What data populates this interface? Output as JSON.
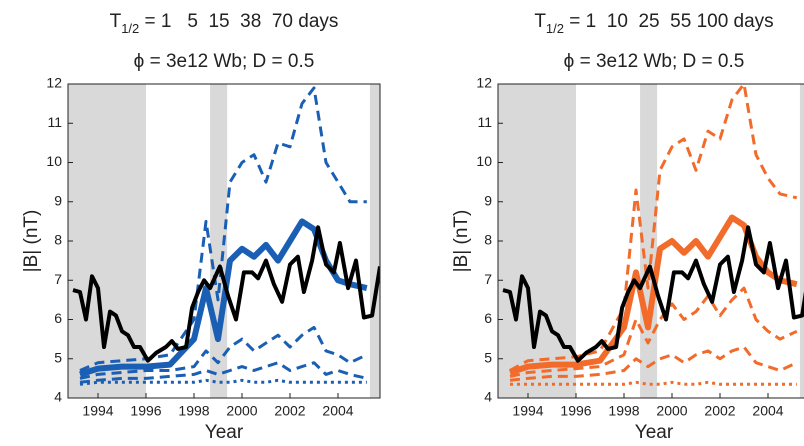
{
  "chart_data": [
    {
      "type": "line",
      "title": "T",
      "title_subscript": "1/2",
      "title_rest": " = 1   5  15  38  70 days",
      "subtitle": "ϕ = 3e12 Wb; D = 0.5",
      "x_label": "Year",
      "y_label": "|B| (nT)",
      "xlim": [
        1992.75,
        2005.75
      ],
      "ylim": [
        4,
        12
      ],
      "xticks": [
        1994,
        1996,
        1998,
        2000,
        2002,
        2004
      ],
      "yticks": [
        4,
        5,
        6,
        7,
        8,
        9,
        10,
        11,
        12
      ],
      "shade_color": "#d9d9d9",
      "shaded_regions": [
        [
          1992.75,
          1996
        ],
        [
          1998.67,
          1999.38
        ],
        [
          2005.33,
          2005.75
        ]
      ],
      "series": [
        {
          "color": "#1a5fb4",
          "dash": "dotted",
          "linewidth": 3,
          "x": [
            1993.25,
            1994,
            1995,
            1996,
            1997,
            1998,
            1998.5,
            1999,
            1999.5,
            2000,
            2000.5,
            2001,
            2001.5,
            2002,
            2002.5,
            2003,
            2003.5,
            2004,
            2004.5,
            2005.2
          ],
          "values": [
            4.35,
            4.4,
            4.4,
            4.4,
            4.4,
            4.4,
            4.45,
            4.4,
            4.4,
            4.45,
            4.4,
            4.4,
            4.45,
            4.4,
            4.4,
            4.4,
            4.4,
            4.4,
            4.4,
            4.4
          ]
        },
        {
          "color": "#1a5fb4",
          "dash": "dashed",
          "linewidth": 3,
          "x": [
            1993.25,
            1994,
            1995,
            1996,
            1997,
            1998,
            1998.5,
            1999,
            1999.5,
            2000,
            2000.5,
            2001,
            2001.5,
            2002,
            2002.5,
            2003,
            2003.5,
            2004,
            2004.5,
            2005.2
          ],
          "values": [
            4.4,
            4.45,
            4.5,
            4.5,
            4.55,
            4.6,
            4.7,
            4.6,
            4.7,
            4.8,
            4.7,
            4.8,
            4.9,
            4.7,
            4.8,
            4.9,
            4.6,
            4.7,
            4.6,
            4.5
          ]
        },
        {
          "color": "#1a5fb4",
          "dash": "dashed",
          "linewidth": 3,
          "x": [
            1993.25,
            1994,
            1995,
            1996,
            1997,
            1998,
            1998.5,
            1999,
            1999.5,
            2000,
            2000.5,
            2001,
            2001.5,
            2002,
            2002.5,
            2003,
            2003.5,
            2004,
            2004.5,
            2005.2
          ],
          "values": [
            4.5,
            4.6,
            4.65,
            4.7,
            4.7,
            4.8,
            5.2,
            4.9,
            5.3,
            5.5,
            5.2,
            5.4,
            5.6,
            5.3,
            5.6,
            5.8,
            5.2,
            5.1,
            4.9,
            5.1
          ]
        },
        {
          "color": "#1a5fb4",
          "dash": "solid",
          "linewidth": 6,
          "x": [
            1993.25,
            1994,
            1995,
            1996,
            1997,
            1998,
            1998.5,
            1999,
            1999.5,
            2000,
            2000.5,
            2001,
            2001.5,
            2002,
            2002.5,
            2003,
            2003.5,
            2004,
            2004.5,
            2005.2
          ],
          "values": [
            4.6,
            4.75,
            4.8,
            4.8,
            4.85,
            5.5,
            6.8,
            5.5,
            7.5,
            7.8,
            7.6,
            7.9,
            7.5,
            8.0,
            8.5,
            8.3,
            7.5,
            7.0,
            6.9,
            6.8
          ]
        },
        {
          "color": "#1a5fb4",
          "dash": "dashed",
          "linewidth": 3,
          "x": [
            1993.25,
            1994,
            1995,
            1996,
            1997,
            1998,
            1998.5,
            1999,
            1999.5,
            2000,
            2000.5,
            2001,
            2001.5,
            2002,
            2002.5,
            2003,
            2003.5,
            2004,
            2004.5,
            2005.2
          ],
          "values": [
            4.7,
            4.9,
            4.95,
            5.0,
            5.1,
            6.0,
            8.5,
            6.5,
            9.5,
            10.0,
            10.2,
            9.5,
            10.5,
            10.4,
            11.5,
            11.9,
            10.0,
            9.5,
            9.0,
            9.0
          ]
        },
        {
          "color": "#000000",
          "dash": "solid",
          "linewidth": 4,
          "x": [
            1992.96,
            1993.25,
            1993.5,
            1993.75,
            1994,
            1994.25,
            1994.5,
            1994.75,
            1995,
            1995.25,
            1995.5,
            1995.75,
            1996.08,
            1996.42,
            1996.83,
            1997.08,
            1997.33,
            1997.67,
            1997.92,
            1998.17,
            1998.42,
            1998.67,
            1999.08,
            1999.42,
            1999.75,
            2000.08,
            2000.42,
            2000.67,
            2001,
            2001.33,
            2001.67,
            2002,
            2002.33,
            2002.58,
            2002.92,
            2003.17,
            2003.5,
            2003.83,
            2004.08,
            2004.42,
            2004.75,
            2005.08,
            2005.42,
            2005.75
          ],
          "values": [
            6.75,
            6.7,
            6.0,
            7.1,
            6.8,
            5.3,
            6.2,
            6.1,
            5.7,
            5.6,
            5.3,
            5.3,
            4.95,
            5.15,
            5.3,
            5.45,
            5.25,
            5.3,
            6.3,
            6.7,
            7.0,
            6.8,
            7.35,
            6.6,
            6.0,
            7.2,
            7.2,
            7.05,
            7.5,
            6.9,
            6.45,
            7.4,
            7.6,
            6.7,
            7.5,
            8.35,
            7.4,
            7.2,
            7.95,
            6.8,
            7.5,
            6.05,
            6.1,
            7.35
          ]
        }
      ]
    },
    {
      "type": "line",
      "title": "T",
      "title_subscript": "1/2",
      "title_rest": " = 1  10  25  55 100 days",
      "subtitle": "ϕ = 3e12 Wb; D = 0.5",
      "x_label": "Year",
      "y_label": "|B| (nT)",
      "xlim": [
        1992.75,
        2005.75
      ],
      "ylim": [
        4,
        12
      ],
      "xticks": [
        1994,
        1996,
        1998,
        2000,
        2002,
        2004
      ],
      "yticks": [
        4,
        5,
        6,
        7,
        8,
        9,
        10,
        11,
        12
      ],
      "shade_color": "#d9d9d9",
      "shaded_regions": [
        [
          1992.75,
          1996
        ],
        [
          1998.67,
          1999.38
        ],
        [
          2005.33,
          2005.75
        ]
      ],
      "series": [
        {
          "color": "#f26b2a",
          "dash": "dotted",
          "linewidth": 3,
          "x": [
            1993.25,
            1994,
            1995,
            1996,
            1997,
            1998,
            1998.5,
            1999,
            1999.5,
            2000,
            2000.5,
            2001,
            2001.5,
            2002,
            2002.5,
            2003,
            2003.5,
            2004,
            2004.5,
            2005.2
          ],
          "values": [
            4.35,
            4.35,
            4.35,
            4.35,
            4.35,
            4.35,
            4.4,
            4.35,
            4.35,
            4.4,
            4.35,
            4.35,
            4.4,
            4.35,
            4.35,
            4.35,
            4.35,
            4.35,
            4.35,
            4.35
          ]
        },
        {
          "color": "#f26b2a",
          "dash": "dashed",
          "linewidth": 3,
          "x": [
            1993.25,
            1994,
            1995,
            1996,
            1997,
            1998,
            1998.5,
            1999,
            1999.5,
            2000,
            2000.5,
            2001,
            2001.5,
            2002,
            2002.5,
            2003,
            2003.5,
            2004,
            2004.5,
            2005.2
          ],
          "values": [
            4.45,
            4.5,
            4.55,
            4.55,
            4.6,
            4.7,
            5.0,
            4.8,
            5.0,
            5.1,
            4.9,
            5.1,
            5.2,
            5.0,
            5.2,
            5.3,
            4.9,
            4.8,
            4.7,
            4.9
          ]
        },
        {
          "color": "#f26b2a",
          "dash": "dashed",
          "linewidth": 3,
          "x": [
            1993.25,
            1994,
            1995,
            1996,
            1997,
            1998,
            1998.5,
            1999,
            1999.5,
            2000,
            2000.5,
            2001,
            2001.5,
            2002,
            2002.5,
            2003,
            2003.5,
            2004,
            2004.5,
            2005.2
          ],
          "values": [
            4.55,
            4.65,
            4.7,
            4.75,
            4.8,
            5.1,
            6.0,
            5.4,
            6.0,
            6.4,
            6.0,
            6.2,
            6.6,
            6.1,
            6.5,
            6.8,
            6.0,
            5.7,
            5.5,
            5.7
          ]
        },
        {
          "color": "#f26b2a",
          "dash": "solid",
          "linewidth": 6,
          "x": [
            1993.25,
            1994,
            1995,
            1996,
            1997,
            1998,
            1998.5,
            1999,
            1999.5,
            2000,
            2000.5,
            2001,
            2001.5,
            2002,
            2002.5,
            2003,
            2003.5,
            2004,
            2004.5,
            2005.2
          ],
          "values": [
            4.65,
            4.8,
            4.85,
            4.85,
            4.95,
            5.8,
            7.2,
            5.8,
            7.8,
            8.0,
            7.7,
            8.0,
            7.6,
            8.1,
            8.6,
            8.4,
            7.6,
            7.2,
            7.0,
            6.9
          ]
        },
        {
          "color": "#f26b2a",
          "dash": "dashed",
          "linewidth": 3,
          "x": [
            1993.25,
            1994,
            1995,
            1996,
            1997,
            1998,
            1998.5,
            1999,
            1999.5,
            2000,
            2000.5,
            2001,
            2001.5,
            2002,
            2002.5,
            2003,
            2003.5,
            2004,
            2004.5,
            2005.2
          ],
          "values": [
            4.7,
            4.95,
            5.0,
            5.05,
            5.2,
            6.3,
            9.3,
            6.8,
            9.8,
            10.4,
            10.6,
            9.8,
            10.8,
            10.6,
            11.6,
            12.0,
            10.2,
            9.6,
            9.2,
            9.1
          ]
        },
        {
          "color": "#000000",
          "dash": "solid",
          "linewidth": 4,
          "x": [
            1992.96,
            1993.25,
            1993.5,
            1993.75,
            1994,
            1994.25,
            1994.5,
            1994.75,
            1995,
            1995.25,
            1995.5,
            1995.75,
            1996.08,
            1996.42,
            1996.83,
            1997.08,
            1997.33,
            1997.67,
            1997.92,
            1998.17,
            1998.42,
            1998.67,
            1999.08,
            1999.42,
            1999.75,
            2000.08,
            2000.42,
            2000.67,
            2001,
            2001.33,
            2001.67,
            2002,
            2002.33,
            2002.58,
            2002.92,
            2003.17,
            2003.5,
            2003.83,
            2004.08,
            2004.42,
            2004.75,
            2005.08,
            2005.42,
            2005.75
          ],
          "values": [
            6.75,
            6.7,
            6.0,
            7.1,
            6.8,
            5.3,
            6.2,
            6.1,
            5.7,
            5.6,
            5.3,
            5.3,
            4.95,
            5.15,
            5.3,
            5.45,
            5.25,
            5.3,
            6.3,
            6.7,
            7.0,
            6.8,
            7.35,
            6.6,
            6.0,
            7.2,
            7.2,
            7.05,
            7.5,
            6.9,
            6.45,
            7.4,
            7.6,
            6.7,
            7.5,
            8.35,
            7.4,
            7.2,
            7.95,
            6.8,
            7.5,
            6.05,
            6.1,
            7.35
          ]
        }
      ]
    }
  ]
}
